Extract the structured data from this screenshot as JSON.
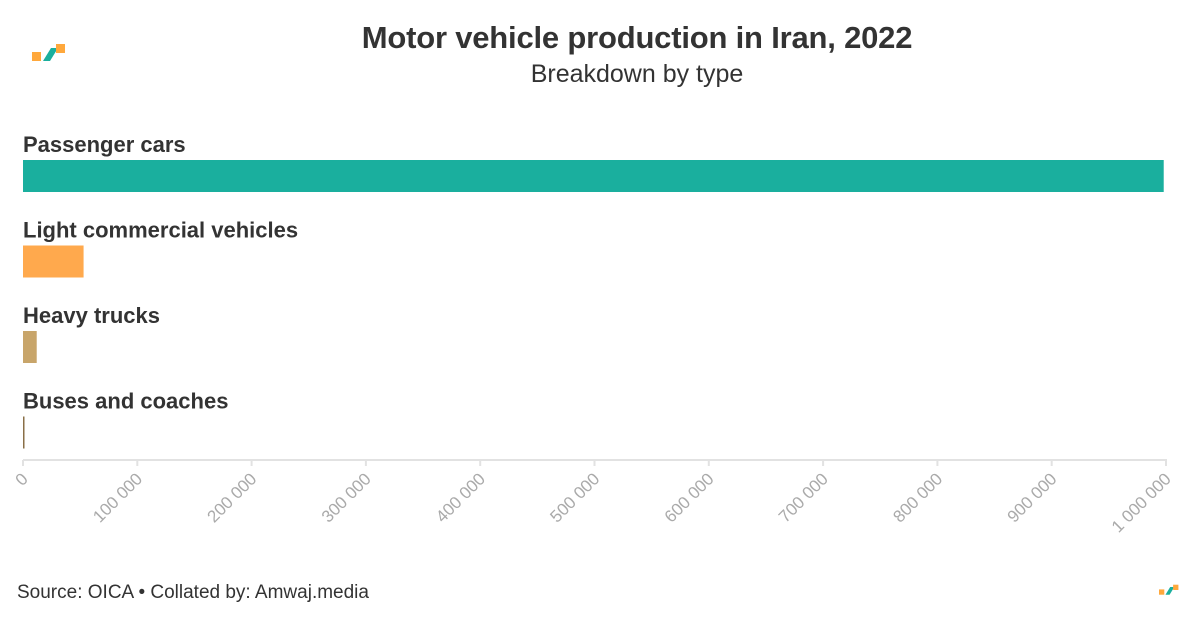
{
  "header": {
    "title": "Motor vehicle production in Iran, 2022",
    "subtitle": "Breakdown by type"
  },
  "footer": {
    "source": "Source: OICA • Collated by: Amwaj.media"
  },
  "brand": {
    "orange": "#ffa83c",
    "teal": "#1aaf9e"
  },
  "chart_data": {
    "type": "bar",
    "orientation": "horizontal",
    "title": "Motor vehicle production in Iran, 2022",
    "subtitle": "Breakdown by type",
    "categories": [
      "Passenger cars",
      "Light commercial vehicles",
      "Heavy trucks",
      "Buses and coaches"
    ],
    "values": [
      998000,
      53000,
      12000,
      600
    ],
    "colors": [
      "#1aaf9e",
      "#ffa94d",
      "#c8a56a",
      "#8a6f47"
    ],
    "xlim": [
      0,
      1000000
    ],
    "xticks": [
      0,
      100000,
      200000,
      300000,
      400000,
      500000,
      600000,
      700000,
      800000,
      900000,
      1000000
    ],
    "xtick_labels": [
      "0",
      "100 000",
      "200 000",
      "300 000",
      "400 000",
      "500 000",
      "600 000",
      "700 000",
      "800 000",
      "900 000",
      "1 000 000"
    ],
    "grid": false,
    "legend": "none"
  }
}
